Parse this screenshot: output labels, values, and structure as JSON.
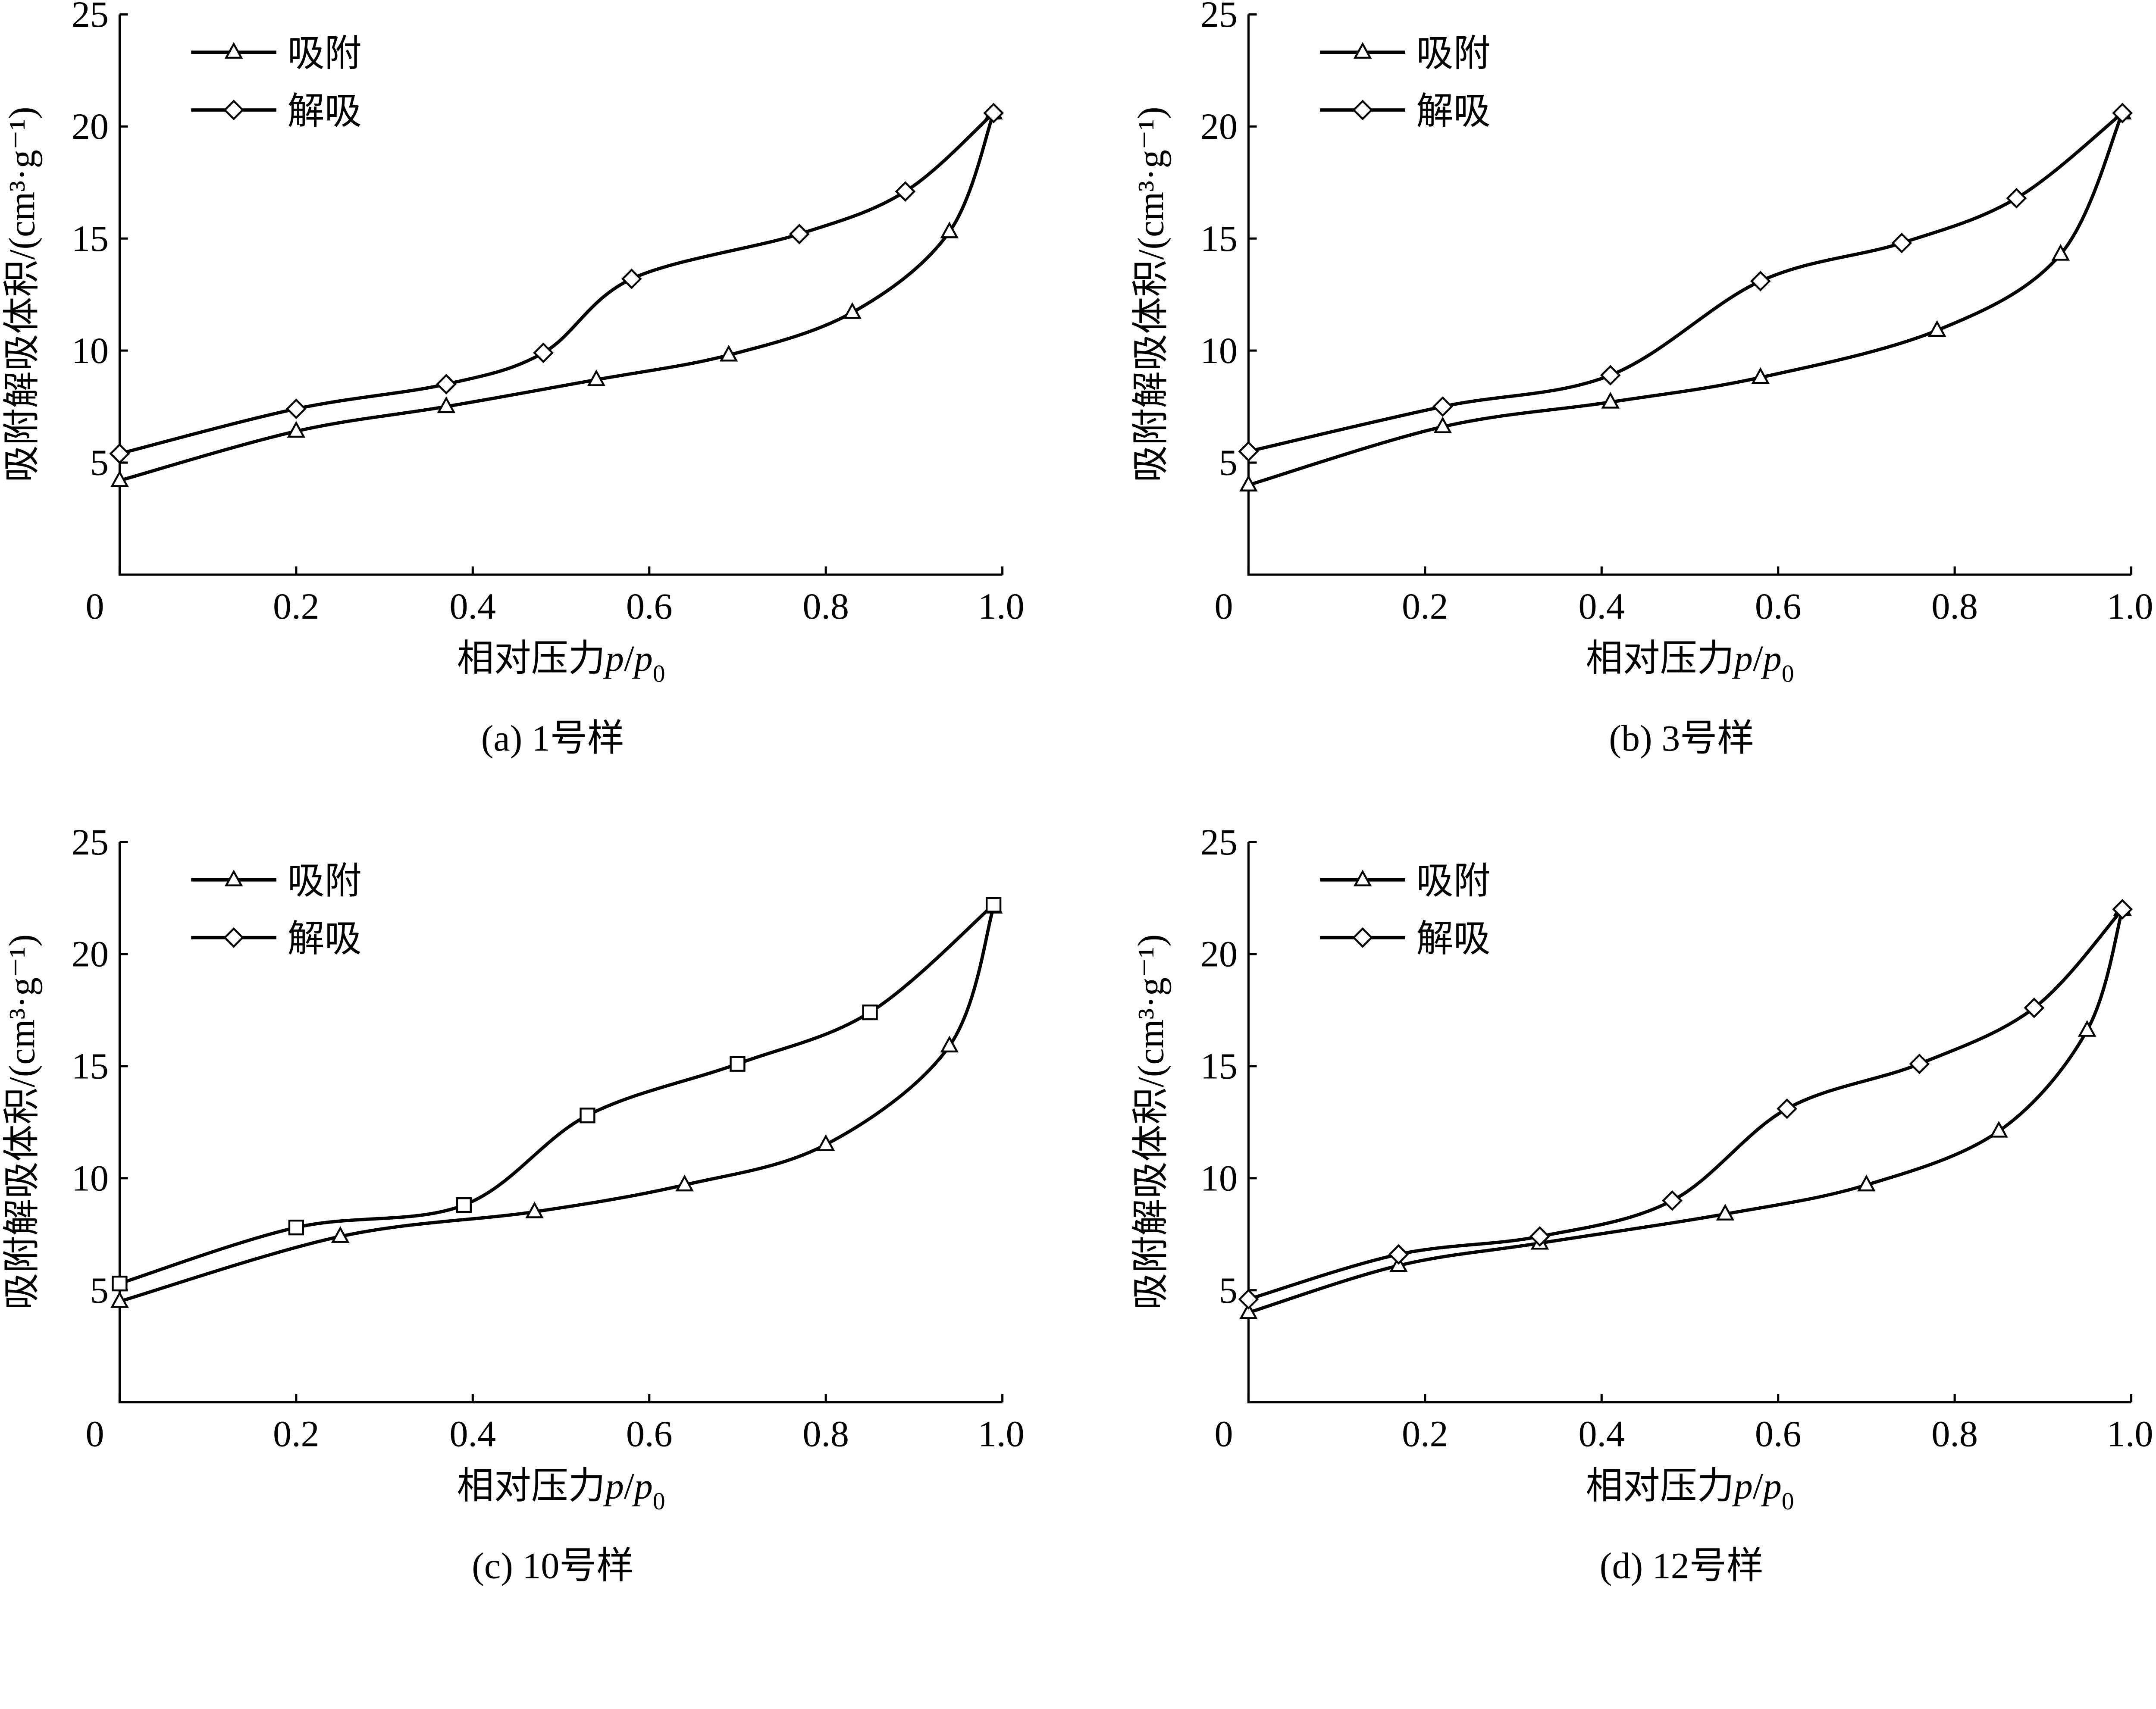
{
  "chart_data": [
    {
      "type": "line",
      "caption": "(a)  1号样",
      "xlabel": {
        "main": "相对压力",
        "p": "p",
        "slash": "/",
        "p0": "p",
        "sub": "0"
      },
      "ylabel": "吸附解吸体积/(cm³·g⁻¹)",
      "xlim": [
        0,
        1.0
      ],
      "ylim": [
        0,
        25
      ],
      "xticks": [
        "0",
        "0.2",
        "0.4",
        "0.6",
        "0.8",
        "1.0"
      ],
      "yticks": [
        "5",
        "10",
        "15",
        "20",
        "25"
      ],
      "legend": {
        "position": "top-left",
        "entries": [
          "吸附",
          "解吸"
        ]
      },
      "series": [
        {
          "name": "吸附",
          "marker": "triangle",
          "x": [
            0.0,
            0.2,
            0.37,
            0.54,
            0.69,
            0.83,
            0.94,
            0.99
          ],
          "y": [
            4.2,
            6.4,
            7.5,
            8.7,
            9.8,
            11.7,
            15.3,
            20.6
          ]
        },
        {
          "name": "解吸",
          "marker": "diamond",
          "x": [
            0.0,
            0.2,
            0.37,
            0.48,
            0.58,
            0.77,
            0.89,
            0.99
          ],
          "y": [
            5.4,
            7.4,
            8.5,
            9.9,
            13.2,
            15.2,
            17.1,
            20.6
          ]
        }
      ]
    },
    {
      "type": "line",
      "caption": "(b)  3号样",
      "xlabel": {
        "main": "相对压力",
        "p": "p",
        "slash": "/",
        "p0": "p",
        "sub": "0"
      },
      "ylabel": "吸附解吸体积/(cm³·g⁻¹)",
      "xlim": [
        0,
        1.0
      ],
      "ylim": [
        0,
        25
      ],
      "xticks": [
        "0",
        "0.2",
        "0.4",
        "0.6",
        "0.8",
        "1.0"
      ],
      "yticks": [
        "5",
        "10",
        "15",
        "20",
        "25"
      ],
      "legend": {
        "position": "top-left",
        "entries": [
          "吸附",
          "解吸"
        ]
      },
      "series": [
        {
          "name": "吸附",
          "marker": "triangle",
          "x": [
            0.0,
            0.22,
            0.41,
            0.58,
            0.78,
            0.92,
            0.99
          ],
          "y": [
            4.0,
            6.6,
            7.7,
            8.8,
            10.9,
            14.3,
            20.6
          ]
        },
        {
          "name": "解吸",
          "marker": "diamond",
          "x": [
            0.0,
            0.22,
            0.41,
            0.58,
            0.74,
            0.87,
            0.99
          ],
          "y": [
            5.5,
            7.5,
            8.9,
            13.1,
            14.8,
            16.8,
            20.6
          ]
        }
      ]
    },
    {
      "type": "line",
      "caption": "(c)  10号样",
      "xlabel": {
        "main": "相对压力",
        "p": "p",
        "slash": "/",
        "p0": "p",
        "sub": "0"
      },
      "ylabel": "吸附解吸体积/(cm³·g⁻¹)",
      "xlim": [
        0,
        1.0
      ],
      "ylim": [
        0,
        25
      ],
      "xticks": [
        "0",
        "0.2",
        "0.4",
        "0.6",
        "0.8",
        "1.0"
      ],
      "yticks": [
        "5",
        "10",
        "15",
        "20",
        "25"
      ],
      "legend": {
        "position": "top-left",
        "entries": [
          "吸附",
          "解吸"
        ]
      },
      "series": [
        {
          "name": "吸附",
          "marker": "triangle",
          "x": [
            0.0,
            0.25,
            0.47,
            0.64,
            0.8,
            0.94,
            0.99
          ],
          "y": [
            4.5,
            7.4,
            8.5,
            9.7,
            11.5,
            15.9,
            22.1
          ]
        },
        {
          "name": "解吸",
          "marker": "square",
          "x": [
            0.0,
            0.2,
            0.39,
            0.53,
            0.7,
            0.85,
            0.99
          ],
          "y": [
            5.3,
            7.8,
            8.8,
            12.8,
            15.1,
            17.4,
            22.2
          ]
        }
      ]
    },
    {
      "type": "line",
      "caption": "(d)  12号样",
      "xlabel": {
        "main": "相对压力",
        "p": "p",
        "slash": "/",
        "p0": "p",
        "sub": "0"
      },
      "ylabel": "吸附解吸体积/(cm³·g⁻¹)",
      "xlim": [
        0,
        1.0
      ],
      "ylim": [
        0,
        25
      ],
      "xticks": [
        "0",
        "0.2",
        "0.4",
        "0.6",
        "0.8",
        "1.0"
      ],
      "yticks": [
        "5",
        "10",
        "15",
        "20",
        "25"
      ],
      "legend": {
        "position": "top-left",
        "entries": [
          "吸附",
          "解吸"
        ]
      },
      "series": [
        {
          "name": "吸附",
          "marker": "triangle",
          "x": [
            0.0,
            0.17,
            0.33,
            0.54,
            0.7,
            0.85,
            0.95,
            0.99
          ],
          "y": [
            4.0,
            6.1,
            7.1,
            8.4,
            9.7,
            12.1,
            16.6,
            22.0
          ]
        },
        {
          "name": "解吸",
          "marker": "diamond",
          "x": [
            0.0,
            0.17,
            0.33,
            0.48,
            0.61,
            0.76,
            0.89,
            0.99
          ],
          "y": [
            4.6,
            6.6,
            7.4,
            9.0,
            13.1,
            15.1,
            17.6,
            22.0
          ]
        }
      ]
    }
  ]
}
